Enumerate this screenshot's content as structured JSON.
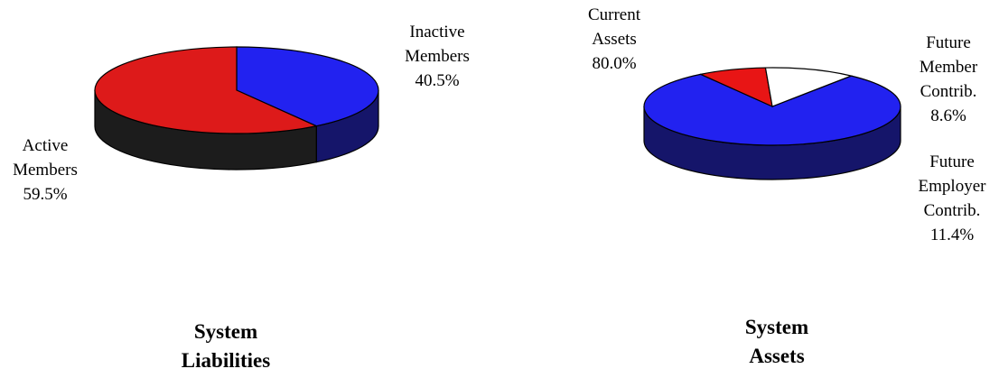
{
  "chart_data": [
    {
      "type": "pie",
      "style": "3d",
      "title_lines": [
        "System",
        "Liabilities"
      ],
      "slices": [
        {
          "label_lines": [
            "Inactive",
            "Members"
          ],
          "value": 40.5,
          "display": "40.5%",
          "color": "#2222f0",
          "side_color": "#15156a"
        },
        {
          "label_lines": [
            "Active",
            "Members"
          ],
          "value": 59.5,
          "display": "59.5%",
          "color": "#dd1a1a",
          "side_color": "#1c1c1c"
        }
      ]
    },
    {
      "type": "pie",
      "style": "3d",
      "title_lines": [
        "System",
        "Assets"
      ],
      "slices": [
        {
          "label_lines": [
            "Current",
            "Assets"
          ],
          "value": 80.0,
          "display": "80.0%",
          "color": "#2222f0",
          "side_color": "#15156a"
        },
        {
          "label_lines": [
            "Future",
            "Member",
            "Contrib."
          ],
          "value": 8.6,
          "display": "8.6%",
          "color": "#e81515",
          "side_color": "#6a0000"
        },
        {
          "label_lines": [
            "Future",
            "Employer",
            "Contrib."
          ],
          "value": 11.4,
          "display": "11.4%",
          "color": "#ffffff",
          "side_color": "#9a8a55"
        }
      ]
    }
  ]
}
